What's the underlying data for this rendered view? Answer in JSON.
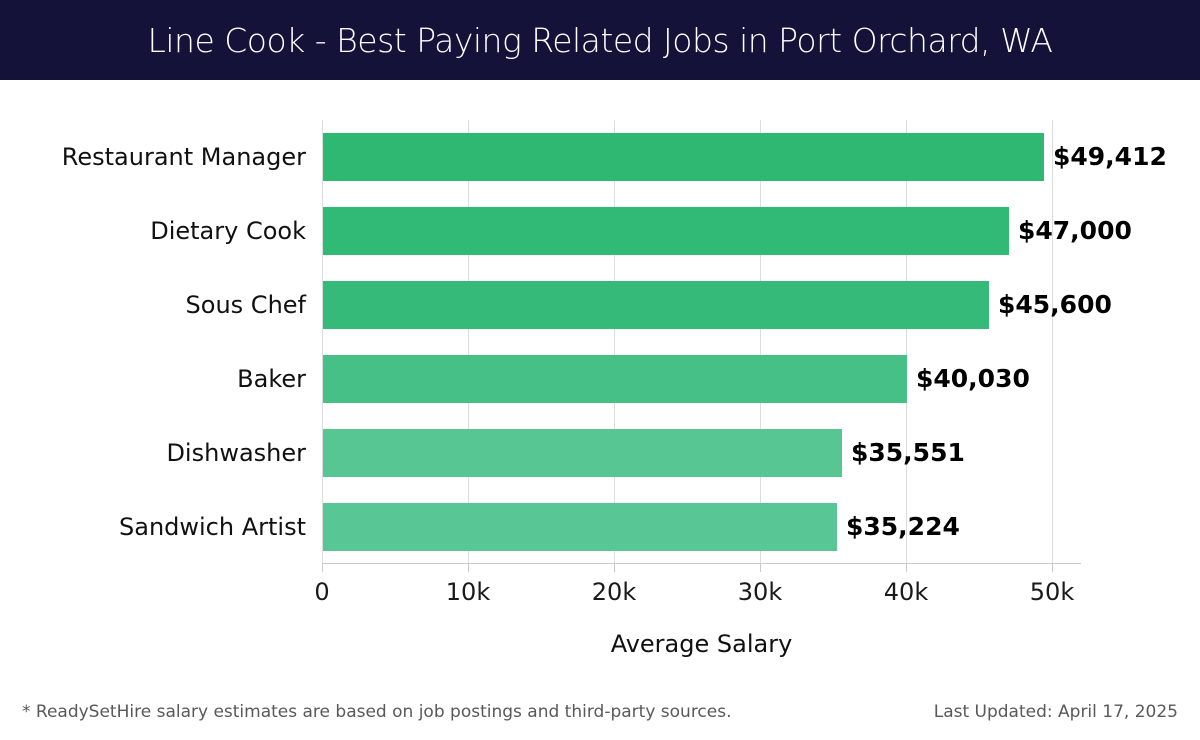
{
  "header": {
    "bg_color": "#141239",
    "text_color": "#ffffff"
  },
  "chart_data": {
    "type": "bar",
    "orientation": "horizontal",
    "title": "Line Cook - Best Paying Related Jobs in Port Orchard, WA",
    "categories": [
      "Restaurant Manager",
      "Dietary Cook",
      "Sous Chef",
      "Baker",
      "Dishwasher",
      "Sandwich Artist"
    ],
    "values": [
      49412,
      47000,
      45600,
      40030,
      35551,
      35224
    ],
    "value_labels": [
      "$49,412",
      "$47,000",
      "$45,600",
      "$40,030",
      "$35,551",
      "$35,224"
    ],
    "bar_colors": [
      "#2eb872",
      "#31b976",
      "#35ba7a",
      "#47c088",
      "#57c693",
      "#59c795"
    ],
    "xlabel": "Average Salary",
    "xlim": [
      0,
      50000
    ],
    "x_ticks": [
      {
        "value": 0,
        "label": "0"
      },
      {
        "value": 10000,
        "label": "10k"
      },
      {
        "value": 20000,
        "label": "20k"
      },
      {
        "value": 30000,
        "label": "30k"
      },
      {
        "value": 40000,
        "label": "40k"
      },
      {
        "value": 50000,
        "label": "50k"
      }
    ],
    "grid": true,
    "grid_color": "#dcdcdc",
    "axis_color": "#c9c9c9",
    "legend": false
  },
  "footer": {
    "note": "* ReadySetHire salary estimates are based on job postings and third-party sources.",
    "last_updated": "Last Updated: April 17, 2025",
    "text_color": "#595959"
  }
}
